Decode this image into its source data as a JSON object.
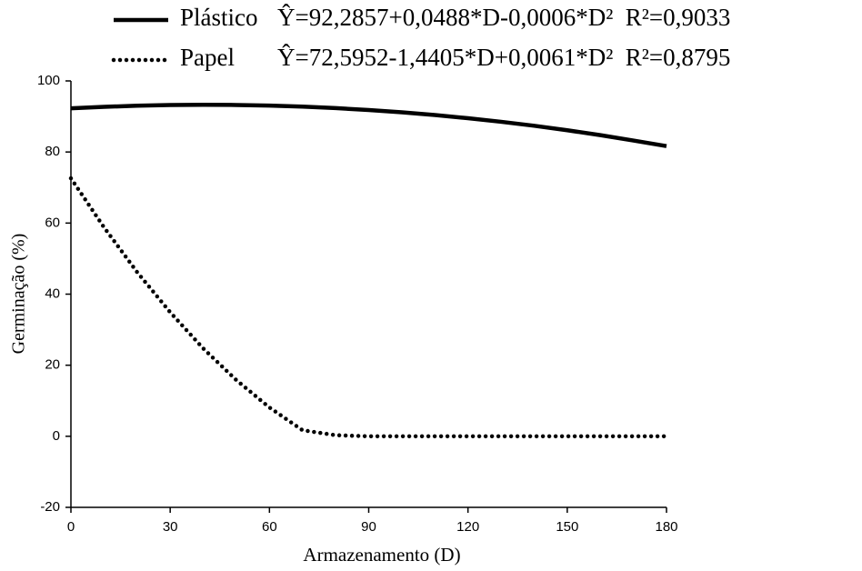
{
  "chart_data": {
    "type": "line",
    "x_label": "Armazenamento (D)",
    "y_label": "Germinação (%)",
    "x": [
      0,
      10,
      20,
      30,
      40,
      50,
      60,
      70,
      80,
      90,
      100,
      110,
      120,
      130,
      140,
      150,
      160,
      170,
      180
    ],
    "series": [
      {
        "name": "Plástico",
        "equation": "Ŷ=92,2857+0,0488*D-0,0006*D²  R²=0,9033",
        "color": "#000000",
        "linestyle": "solid",
        "values": [
          92.29,
          92.71,
          93.02,
          93.22,
          93.28,
          93.23,
          93.05,
          92.77,
          92.35,
          91.81,
          91.17,
          90.4,
          89.5,
          88.5,
          87.38,
          86.12,
          84.74,
          83.23,
          81.65
        ]
      },
      {
        "name": "Papel",
        "equation": "Ŷ=72,5952-1,4405*D+0,0061*D²  R²=0,8795",
        "color": "#000000",
        "linestyle": "dotted",
        "values": [
          72.6,
          58.8,
          46.2,
          34.9,
          24.7,
          15.8,
          8.1,
          1.7,
          0.3,
          0,
          0,
          0,
          0,
          0,
          0,
          0,
          0,
          0,
          0
        ]
      }
    ],
    "xlim": [
      0,
      180
    ],
    "xticks": [
      0,
      30,
      60,
      90,
      120,
      150,
      180
    ],
    "ylim": [
      -20,
      100
    ],
    "yticks": [
      -20,
      0,
      20,
      40,
      60,
      80,
      100
    ],
    "grid": false
  }
}
